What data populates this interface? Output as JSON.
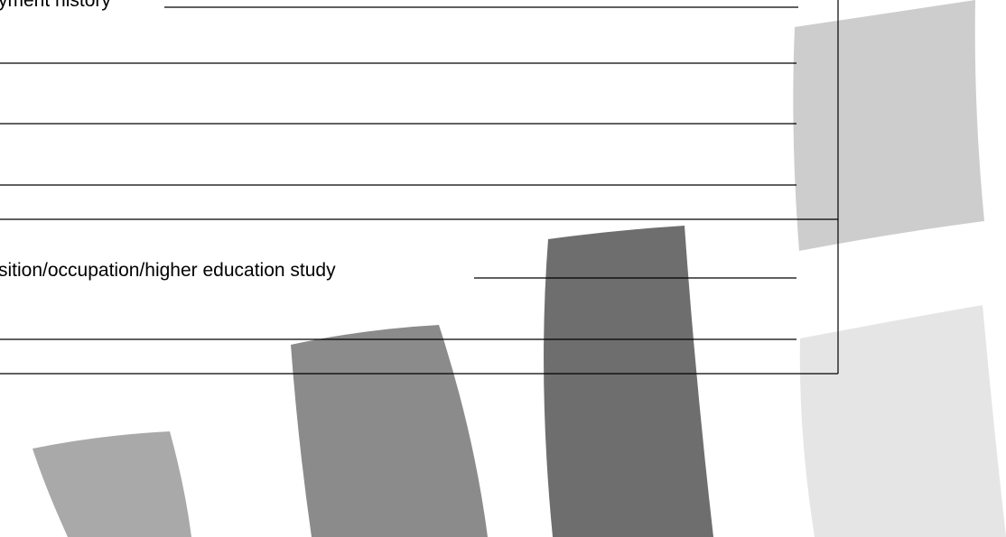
{
  "form": {
    "fields": [
      {
        "label": "yment history"
      },
      {
        "label": "sition/occupation/higher education study"
      }
    ]
  }
}
